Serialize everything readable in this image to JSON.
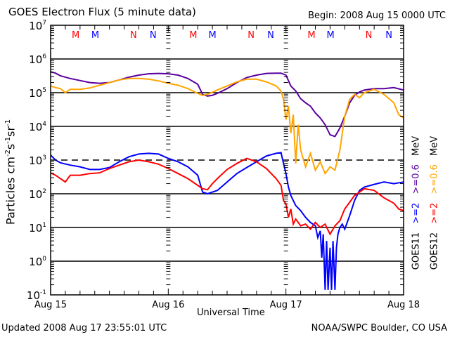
{
  "header": {
    "title": "GOES Electron Flux (5 minute data)",
    "begin": "Begin: 2008 Aug 15 0000 UTC"
  },
  "footer": {
    "updated": "Updated 2008 Aug 17 23:55:01 UTC",
    "credit": "NOAA/SWPC Boulder, CO USA"
  },
  "legend": {
    "rows": [
      {
        "satellite": "GOES11",
        "ch1": ">=2",
        "ch2": ">=0.6",
        "unit": "MeV",
        "ch1_color": "#0000ff",
        "ch2_color": "#5a00a0"
      },
      {
        "satellite": "GOES12",
        "ch1": ">=2",
        "ch2": ">=0.6",
        "unit": "MeV",
        "ch1_color": "#ff0000",
        "ch2_color": "#ffa500"
      }
    ]
  },
  "chart_data": {
    "type": "line",
    "title": "GOES Electron Flux (5 minute data)",
    "xlabel": "Universal Time",
    "ylabel": "Particles cm-2s-1sr-1",
    "ylabel_parts": {
      "base": "Particles cm",
      "e1": "-2",
      "s": "s",
      "e2": "-1",
      "sr": "sr",
      "e3": "-1"
    },
    "yscale": "log",
    "ylim_log10": [
      -1,
      7
    ],
    "ytick_labels": [
      {
        "exp": 7,
        "base": "10",
        "sup": "7"
      },
      {
        "exp": 6,
        "base": "10",
        "sup": "6"
      },
      {
        "exp": 5,
        "base": "10",
        "sup": "5"
      },
      {
        "exp": 4,
        "base": "10",
        "sup": "4"
      },
      {
        "exp": 3,
        "base": "10",
        "sup": "3"
      },
      {
        "exp": 2,
        "base": "10",
        "sup": "2"
      },
      {
        "exp": 1,
        "base": "10",
        "sup": "1"
      },
      {
        "exp": 0,
        "base": "10",
        "sup": "0"
      },
      {
        "exp": -1,
        "base": "10",
        "sup": "-1"
      }
    ],
    "xlim_hours": [
      0,
      72
    ],
    "xtick_labels": [
      {
        "hour": 0,
        "label": "Aug 15"
      },
      {
        "hour": 24,
        "label": "Aug 16"
      },
      {
        "hour": 48,
        "label": "Aug 17"
      },
      {
        "hour": 72,
        "label": "Aug 18"
      }
    ],
    "solid_grid_log10": [
      6,
      5,
      4,
      2,
      1,
      0
    ],
    "dashed_threshold_log10": 3,
    "markers": [
      {
        "hour": 5.1,
        "label": "M",
        "color": "#ff0000"
      },
      {
        "hour": 9.1,
        "label": "M",
        "color": "#0000ff"
      },
      {
        "hour": 16.9,
        "label": "N",
        "color": "#ff0000"
      },
      {
        "hour": 20.9,
        "label": "N",
        "color": "#0000ff"
      },
      {
        "hour": 29.1,
        "label": "M",
        "color": "#ff0000"
      },
      {
        "hour": 33.0,
        "label": "M",
        "color": "#0000ff"
      },
      {
        "hour": 40.9,
        "label": "N",
        "color": "#ff0000"
      },
      {
        "hour": 44.9,
        "label": "N",
        "color": "#0000ff"
      },
      {
        "hour": 53.2,
        "label": "M",
        "color": "#ff0000"
      },
      {
        "hour": 57.1,
        "label": "M",
        "color": "#0000ff"
      },
      {
        "hour": 64.9,
        "label": "N",
        "color": "#ff0000"
      },
      {
        "hour": 69.0,
        "label": "N",
        "color": "#0000ff"
      }
    ],
    "series": [
      {
        "name": "GOES11 >=0.6 MeV",
        "color": "#5a00a0",
        "hours": [
          0,
          1,
          2,
          4,
          6,
          8,
          10,
          12,
          14,
          16,
          18,
          20,
          22,
          24,
          26,
          28,
          30,
          31,
          32,
          33,
          34,
          36,
          38,
          40,
          42,
          44,
          46,
          47,
          48,
          49,
          50,
          51,
          52,
          53,
          54,
          55,
          56,
          57,
          58,
          59,
          60,
          61,
          62,
          63,
          64,
          66,
          68,
          70,
          72
        ],
        "log10": [
          5.62,
          5.58,
          5.5,
          5.42,
          5.36,
          5.3,
          5.28,
          5.3,
          5.38,
          5.46,
          5.52,
          5.56,
          5.57,
          5.56,
          5.52,
          5.42,
          5.25,
          4.95,
          4.9,
          4.92,
          4.98,
          5.12,
          5.3,
          5.45,
          5.52,
          5.57,
          5.58,
          5.58,
          5.52,
          5.2,
          5.05,
          4.82,
          4.7,
          4.6,
          4.4,
          4.25,
          4.05,
          3.75,
          3.7,
          3.95,
          4.3,
          4.7,
          4.92,
          5.02,
          5.08,
          5.12,
          5.12,
          5.15,
          5.08
        ]
      },
      {
        "name": "GOES12 >=0.6 MeV",
        "color": "#ffa500",
        "hours": [
          0,
          1,
          2,
          3,
          4,
          6,
          8,
          10,
          12,
          14,
          16,
          18,
          20,
          22,
          24,
          26,
          28,
          30,
          31,
          32,
          34,
          36,
          38,
          40,
          42,
          44,
          46,
          47,
          47.5,
          48,
          48.5,
          49,
          49.5,
          50,
          50.5,
          51,
          52,
          53,
          54,
          55,
          56,
          57,
          58,
          59,
          60,
          61,
          62,
          63,
          64,
          66,
          68,
          70,
          71,
          72
        ],
        "log10": [
          5.2,
          5.15,
          5.12,
          5.0,
          5.1,
          5.1,
          5.14,
          5.22,
          5.3,
          5.38,
          5.42,
          5.42,
          5.4,
          5.35,
          5.28,
          5.22,
          5.12,
          4.98,
          4.92,
          4.95,
          5.08,
          5.2,
          5.32,
          5.4,
          5.4,
          5.32,
          5.2,
          5.05,
          4.8,
          4.2,
          4.6,
          3.8,
          4.35,
          2.9,
          4.05,
          3.3,
          2.8,
          3.2,
          2.7,
          2.95,
          2.6,
          2.8,
          2.7,
          3.3,
          4.3,
          4.8,
          4.95,
          4.85,
          5.0,
          5.1,
          4.95,
          4.7,
          4.35,
          4.25
        ]
      },
      {
        "name": "GOES11 >=2 MeV",
        "color": "#0000ff",
        "hours": [
          0,
          1,
          2,
          4,
          6,
          8,
          10,
          12,
          14,
          16,
          18,
          20,
          22,
          24,
          26,
          28,
          30,
          31,
          32,
          33,
          34,
          36,
          38,
          40,
          42,
          44,
          46,
          47,
          47.5,
          48,
          48.5,
          49,
          50,
          51,
          52,
          53,
          54,
          54.5,
          55,
          55.3,
          55.6,
          56,
          56.3,
          56.6,
          57,
          57.3,
          57.6,
          58,
          58.3,
          58.6,
          59,
          59.5,
          60,
          61,
          62,
          63,
          64,
          66,
          68,
          70,
          72
        ],
        "log10": [
          3.15,
          3.0,
          2.92,
          2.85,
          2.8,
          2.72,
          2.72,
          2.78,
          2.95,
          3.1,
          3.18,
          3.2,
          3.18,
          3.05,
          2.95,
          2.8,
          2.55,
          2.05,
          2.0,
          2.05,
          2.1,
          2.35,
          2.6,
          2.78,
          2.95,
          3.12,
          3.2,
          3.22,
          2.9,
          2.6,
          2.2,
          1.95,
          1.65,
          1.5,
          1.3,
          1.15,
          1.05,
          0.7,
          0.9,
          0.1,
          0.8,
          -0.85,
          0.6,
          -0.85,
          0.4,
          -0.85,
          0.6,
          -0.85,
          0.4,
          0.8,
          1.0,
          1.1,
          0.95,
          1.35,
          1.8,
          2.1,
          2.2,
          2.28,
          2.35,
          2.3,
          2.35
        ]
      },
      {
        "name": "GOES12 >=2 MeV",
        "color": "#ff0000",
        "hours": [
          0,
          1,
          2,
          3,
          4,
          6,
          8,
          10,
          12,
          14,
          16,
          18,
          20,
          22,
          24,
          26,
          28,
          30,
          31,
          32,
          33,
          34,
          36,
          38,
          40,
          42,
          44,
          46,
          47,
          47.5,
          48,
          48.5,
          49,
          49.5,
          50,
          51,
          52,
          53,
          54,
          55,
          56,
          57,
          58,
          59,
          60,
          61,
          62,
          63,
          64,
          66,
          68,
          70,
          71,
          72
        ],
        "log10": [
          2.62,
          2.55,
          2.45,
          2.35,
          2.55,
          2.55,
          2.6,
          2.62,
          2.75,
          2.85,
          2.95,
          3.0,
          2.95,
          2.88,
          2.75,
          2.6,
          2.45,
          2.25,
          2.15,
          2.12,
          2.3,
          2.45,
          2.72,
          2.9,
          3.05,
          2.95,
          2.75,
          2.45,
          2.25,
          1.8,
          1.7,
          1.3,
          1.55,
          1.1,
          1.25,
          1.05,
          1.1,
          0.95,
          1.15,
          1.0,
          1.1,
          0.8,
          1.05,
          1.2,
          1.55,
          1.75,
          1.95,
          2.05,
          2.15,
          2.1,
          1.88,
          1.72,
          1.55,
          1.5
        ]
      }
    ]
  }
}
